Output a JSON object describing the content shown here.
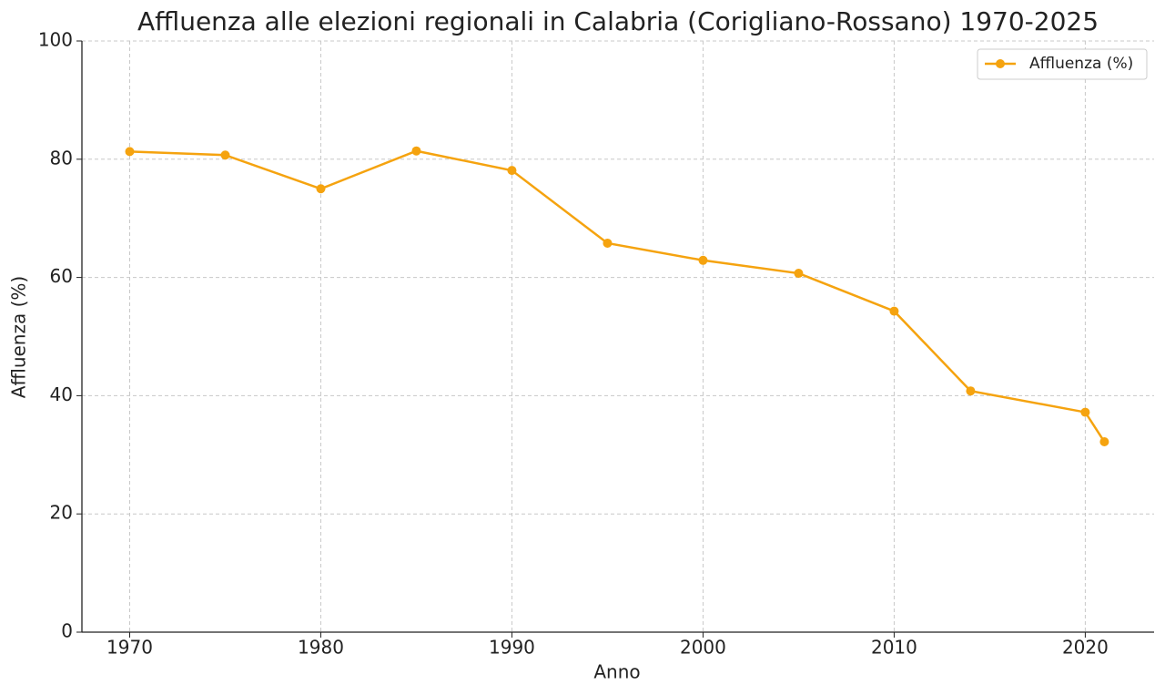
{
  "chart_data": {
    "type": "line",
    "title": "Affluenza alle elezioni regionali in Calabria (Corigliano-Rossano) 1970-2025",
    "x_label": "Anno",
    "y_label": "Affluenza (%)",
    "x": [
      1970,
      1975,
      1980,
      1985,
      1990,
      1995,
      2000,
      2005,
      2010,
      2014,
      2020,
      2021
    ],
    "series": [
      {
        "name": "Affluenza (%)",
        "color": "#f5a30f",
        "values": [
          81.3,
          80.7,
          75.0,
          81.4,
          78.1,
          65.8,
          62.9,
          60.7,
          54.3,
          40.8,
          37.2,
          32.2
        ]
      }
    ],
    "xlim": [
      1967.5,
      2023.6
    ],
    "xticks": [
      1970,
      1980,
      1990,
      2000,
      2010,
      2020
    ],
    "ylim": [
      0,
      100
    ],
    "yticks": [
      0,
      20,
      40,
      60,
      80,
      100
    ],
    "grid": true,
    "legend": "upper right"
  }
}
